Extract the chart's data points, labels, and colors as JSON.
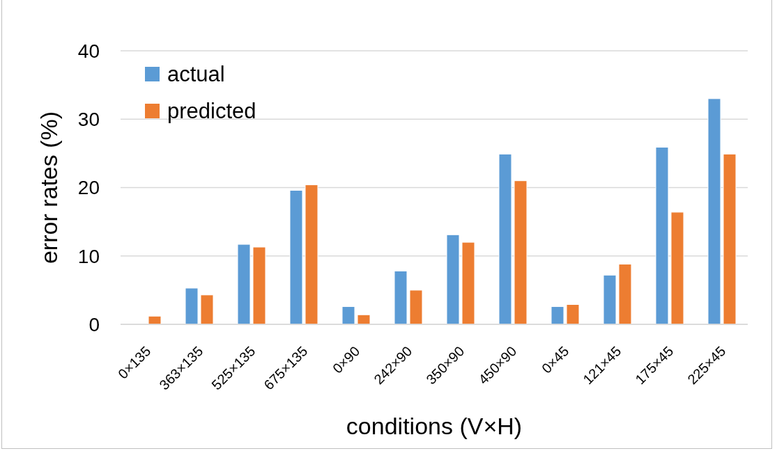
{
  "chart_data": {
    "type": "bar",
    "xlabel": "conditions (V×H)",
    "ylabel": "error rates (%)",
    "categories": [
      "0×135",
      "363×135",
      "525×135",
      "675×135",
      "0×90",
      "242×90",
      "350×90",
      "450×90",
      "0×45",
      "121×45",
      "175×45",
      "225×45"
    ],
    "series": [
      {
        "name": "actual",
        "color": "#5b9bd5",
        "values": [
          0,
          5.3,
          11.7,
          19.6,
          2.6,
          7.8,
          13.1,
          24.9,
          2.6,
          7.2,
          25.9,
          33.0
        ]
      },
      {
        "name": "predicted",
        "color": "#ed7d31",
        "values": [
          1.2,
          4.3,
          11.3,
          20.4,
          1.4,
          5.0,
          12.0,
          21.0,
          2.9,
          8.8,
          16.4,
          24.9
        ]
      }
    ],
    "ylim": [
      0,
      40
    ],
    "yticks": [
      0,
      10,
      20,
      30,
      40
    ],
    "grid": "y",
    "legend": "top left"
  }
}
